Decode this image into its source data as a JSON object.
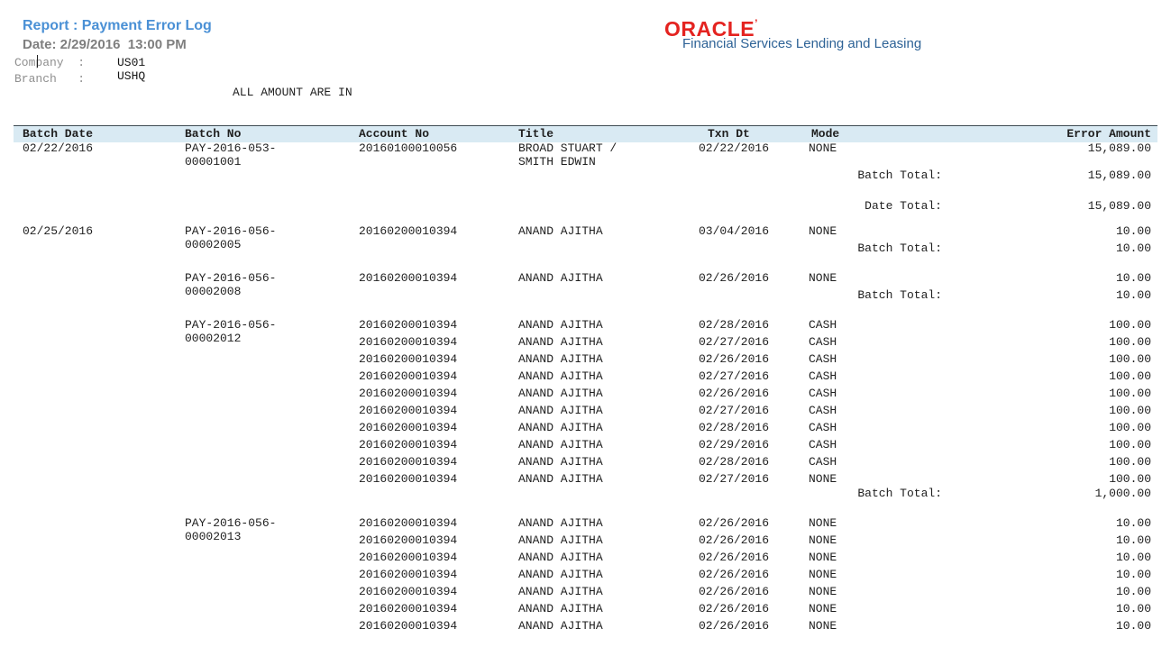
{
  "report": {
    "title": "Report : Payment Error Log",
    "date_line": "Date: 2/29/2016  13:00 PM",
    "company_label": "Company  :",
    "company_value": "US01",
    "branch_label": "Branch   :",
    "branch_value": "USHQ",
    "amount_note": "ALL AMOUNT ARE IN"
  },
  "logo": {
    "brand": "ORACLE",
    "brand_mark": "’",
    "tagline": "Financial Services Lending and Leasing",
    "brand_color": "#e42320",
    "tagline_color": "#2d6296"
  },
  "table": {
    "columns": [
      "Batch Date",
      "Batch No",
      "Account No",
      "Title",
      "Txn Dt",
      "Mode",
      "Error Amount"
    ],
    "batch_total_label": "Batch Total:",
    "date_total_label": "Date Total:",
    "header_bg": "#d9eaf3",
    "groups": [
      {
        "batch_date": "02/22/2016",
        "batches": [
          {
            "batch_no_lines": [
              "PAY-2016-053-",
              "00001001"
            ],
            "rows": [
              {
                "account_no": "20160100010056",
                "title_lines": [
                  "BROAD STUART /",
                  "SMITH EDWIN"
                ],
                "txn_dt": "02/22/2016",
                "mode": "NONE",
                "amount": "15,089.00"
              }
            ],
            "batch_total": "15,089.00"
          }
        ],
        "date_total": "15,089.00"
      },
      {
        "batch_date": "02/25/2016",
        "batches": [
          {
            "batch_no_lines": [
              "PAY-2016-056-",
              "00002005"
            ],
            "rows": [
              {
                "account_no": "20160200010394",
                "title_lines": [
                  "ANAND AJITHA"
                ],
                "txn_dt": "03/04/2016",
                "mode": "NONE",
                "amount": "10.00"
              }
            ],
            "batch_total": "10.00"
          },
          {
            "batch_no_lines": [
              "PAY-2016-056-",
              "00002008"
            ],
            "rows": [
              {
                "account_no": "20160200010394",
                "title_lines": [
                  "ANAND AJITHA"
                ],
                "txn_dt": "02/26/2016",
                "mode": "NONE",
                "amount": "10.00"
              }
            ],
            "batch_total": "10.00"
          },
          {
            "batch_no_lines": [
              "PAY-2016-056-",
              "00002012"
            ],
            "rows": [
              {
                "account_no": "20160200010394",
                "title_lines": [
                  "ANAND AJITHA"
                ],
                "txn_dt": "02/28/2016",
                "mode": "CASH",
                "amount": "100.00"
              },
              {
                "account_no": "20160200010394",
                "title_lines": [
                  "ANAND AJITHA"
                ],
                "txn_dt": "02/27/2016",
                "mode": "CASH",
                "amount": "100.00"
              },
              {
                "account_no": "20160200010394",
                "title_lines": [
                  "ANAND AJITHA"
                ],
                "txn_dt": "02/26/2016",
                "mode": "CASH",
                "amount": "100.00"
              },
              {
                "account_no": "20160200010394",
                "title_lines": [
                  "ANAND AJITHA"
                ],
                "txn_dt": "02/27/2016",
                "mode": "CASH",
                "amount": "100.00"
              },
              {
                "account_no": "20160200010394",
                "title_lines": [
                  "ANAND AJITHA"
                ],
                "txn_dt": "02/26/2016",
                "mode": "CASH",
                "amount": "100.00"
              },
              {
                "account_no": "20160200010394",
                "title_lines": [
                  "ANAND AJITHA"
                ],
                "txn_dt": "02/27/2016",
                "mode": "CASH",
                "amount": "100.00"
              },
              {
                "account_no": "20160200010394",
                "title_lines": [
                  "ANAND AJITHA"
                ],
                "txn_dt": "02/28/2016",
                "mode": "CASH",
                "amount": "100.00"
              },
              {
                "account_no": "20160200010394",
                "title_lines": [
                  "ANAND AJITHA"
                ],
                "txn_dt": "02/29/2016",
                "mode": "CASH",
                "amount": "100.00"
              },
              {
                "account_no": "20160200010394",
                "title_lines": [
                  "ANAND AJITHA"
                ],
                "txn_dt": "02/28/2016",
                "mode": "CASH",
                "amount": "100.00"
              },
              {
                "account_no": "20160200010394",
                "title_lines": [
                  "ANAND AJITHA"
                ],
                "txn_dt": "02/27/2016",
                "mode": "NONE",
                "amount": "100.00"
              }
            ],
            "batch_total": "1,000.00"
          },
          {
            "batch_no_lines": [
              "PAY-2016-056-",
              "00002013"
            ],
            "rows": [
              {
                "account_no": "20160200010394",
                "title_lines": [
                  "ANAND AJITHA"
                ],
                "txn_dt": "02/26/2016",
                "mode": "NONE",
                "amount": "10.00"
              },
              {
                "account_no": "20160200010394",
                "title_lines": [
                  "ANAND AJITHA"
                ],
                "txn_dt": "02/26/2016",
                "mode": "NONE",
                "amount": "10.00"
              },
              {
                "account_no": "20160200010394",
                "title_lines": [
                  "ANAND AJITHA"
                ],
                "txn_dt": "02/26/2016",
                "mode": "NONE",
                "amount": "10.00"
              },
              {
                "account_no": "20160200010394",
                "title_lines": [
                  "ANAND AJITHA"
                ],
                "txn_dt": "02/26/2016",
                "mode": "NONE",
                "amount": "10.00"
              },
              {
                "account_no": "20160200010394",
                "title_lines": [
                  "ANAND AJITHA"
                ],
                "txn_dt": "02/26/2016",
                "mode": "NONE",
                "amount": "10.00"
              },
              {
                "account_no": "20160200010394",
                "title_lines": [
                  "ANAND AJITHA"
                ],
                "txn_dt": "02/26/2016",
                "mode": "NONE",
                "amount": "10.00"
              },
              {
                "account_no": "20160200010394",
                "title_lines": [
                  "ANAND AJITHA"
                ],
                "txn_dt": "02/26/2016",
                "mode": "NONE",
                "amount": "10.00"
              }
            ],
            "batch_total": null
          }
        ],
        "date_total": null
      }
    ]
  }
}
